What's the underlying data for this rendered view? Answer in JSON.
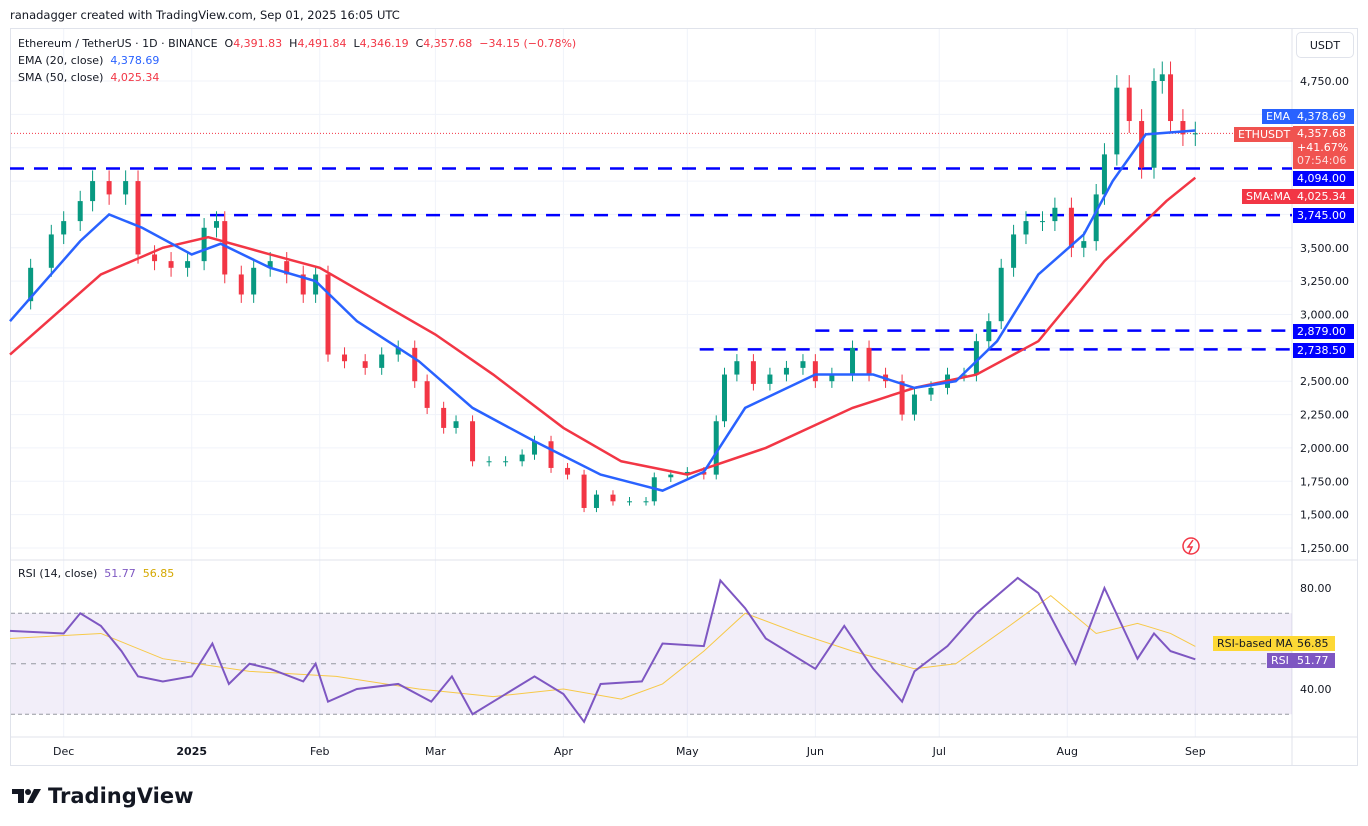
{
  "credit": "ranadagger created with TradingView.com, Sep 01, 2025 16:05 UTC",
  "legend": {
    "symbol": "Ethereum / TetherUS · 1D · BINANCE",
    "open_label": "O",
    "open": "4,391.83",
    "high_label": "H",
    "high": "4,491.84",
    "low_label": "L",
    "low": "4,346.19",
    "close_label": "C",
    "close": "4,357.68",
    "change": "−34.15 (−0.78%)",
    "ema_label": "EMA (20, close)",
    "ema_value": "4,378.69",
    "sma_label": "SMA (50, close)",
    "sma_value": "4,025.34",
    "rsi_label": "RSI (14, close)",
    "rsi_value": "51.77",
    "rsi_ma_value": "56.85"
  },
  "currency": "USDT",
  "tags": {
    "ema": {
      "label": "EMA",
      "value": "4,378.69"
    },
    "price": {
      "label": "ETHUSDT",
      "value": "4,357.68",
      "pct": "+41.67%",
      "countdown": "07:54:06"
    },
    "sma": {
      "label": "SMA:MA",
      "value": "4,025.34"
    },
    "lvl1": "4,094.00",
    "lvl2": "3,745.00",
    "lvl3": "2,879.00",
    "lvl4": "2,738.50",
    "rsi_ma": {
      "label": "RSI-based MA",
      "value": "56.85"
    },
    "rsi": {
      "label": "RSI",
      "value": "51.77"
    }
  },
  "brand": "TradingView",
  "colors": {
    "up": "#089981",
    "down": "#f23645",
    "ema": "#2962ff",
    "sma": "#f23645",
    "level": "#0000ff",
    "rsi": "#7e57c2",
    "rsi_ma": "#f7c948"
  },
  "chart_data": {
    "type": "candlestick",
    "y_ticks": [
      "4,750.00",
      "3,500.00",
      "3,250.00",
      "3,000.00",
      "2,500.00",
      "2,250.00",
      "2,000.00",
      "1,750.00",
      "1,500.00",
      "1,250.00"
    ],
    "x_ticks": [
      [
        "2024-12-01",
        "Dec"
      ],
      [
        "2025-01-01",
        "2025"
      ],
      [
        "2025-02-01",
        "Feb"
      ],
      [
        "2025-03-01",
        "Mar"
      ],
      [
        "2025-04-01",
        "Apr"
      ],
      [
        "2025-05-01",
        "May"
      ],
      [
        "2025-06-01",
        "Jun"
      ],
      [
        "2025-07-01",
        "Jul"
      ],
      [
        "2025-08-01",
        "Aug"
      ],
      [
        "2025-09-01",
        "Sep"
      ]
    ],
    "ylim": [
      1150,
      4950
    ],
    "closes": [
      [
        "2024-11-18",
        3100
      ],
      [
        "2024-11-23",
        3350
      ],
      [
        "2024-11-28",
        3600
      ],
      [
        "2024-12-01",
        3700
      ],
      [
        "2024-12-05",
        3850
      ],
      [
        "2024-12-08",
        4000
      ],
      [
        "2024-12-12",
        3900
      ],
      [
        "2024-12-16",
        4000
      ],
      [
        "2024-12-19",
        3450
      ],
      [
        "2024-12-23",
        3400
      ],
      [
        "2024-12-27",
        3350
      ],
      [
        "2024-12-31",
        3400
      ],
      [
        "2025-01-04",
        3650
      ],
      [
        "2025-01-07",
        3700
      ],
      [
        "2025-01-09",
        3300
      ],
      [
        "2025-01-13",
        3150
      ],
      [
        "2025-01-16",
        3350
      ],
      [
        "2025-01-20",
        3400
      ],
      [
        "2025-01-24",
        3300
      ],
      [
        "2025-01-28",
        3150
      ],
      [
        "2025-01-31",
        3300
      ],
      [
        "2025-02-03",
        2700
      ],
      [
        "2025-02-07",
        2650
      ],
      [
        "2025-02-12",
        2600
      ],
      [
        "2025-02-16",
        2700
      ],
      [
        "2025-02-20",
        2750
      ],
      [
        "2025-02-24",
        2500
      ],
      [
        "2025-02-27",
        2300
      ],
      [
        "2025-03-03",
        2150
      ],
      [
        "2025-03-06",
        2200
      ],
      [
        "2025-03-10",
        1900
      ],
      [
        "2025-03-14",
        1900
      ],
      [
        "2025-03-18",
        1900
      ],
      [
        "2025-03-22",
        1950
      ],
      [
        "2025-03-25",
        2050
      ],
      [
        "2025-03-29",
        1850
      ],
      [
        "2025-04-02",
        1800
      ],
      [
        "2025-04-06",
        1550
      ],
      [
        "2025-04-09",
        1650
      ],
      [
        "2025-04-13",
        1600
      ],
      [
        "2025-04-17",
        1600
      ],
      [
        "2025-04-21",
        1600
      ],
      [
        "2025-04-23",
        1780
      ],
      [
        "2025-04-27",
        1800
      ],
      [
        "2025-05-01",
        1820
      ],
      [
        "2025-05-05",
        1800
      ],
      [
        "2025-05-08",
        2200
      ],
      [
        "2025-05-10",
        2550
      ],
      [
        "2025-05-13",
        2650
      ],
      [
        "2025-05-17",
        2480
      ],
      [
        "2025-05-21",
        2550
      ],
      [
        "2025-05-25",
        2600
      ],
      [
        "2025-05-29",
        2650
      ],
      [
        "2025-06-01",
        2500
      ],
      [
        "2025-06-05",
        2550
      ],
      [
        "2025-06-10",
        2750
      ],
      [
        "2025-06-14",
        2550
      ],
      [
        "2025-06-18",
        2500
      ],
      [
        "2025-06-22",
        2250
      ],
      [
        "2025-06-25",
        2400
      ],
      [
        "2025-06-29",
        2450
      ],
      [
        "2025-07-03",
        2550
      ],
      [
        "2025-07-07",
        2550
      ],
      [
        "2025-07-10",
        2800
      ],
      [
        "2025-07-13",
        2950
      ],
      [
        "2025-07-16",
        3350
      ],
      [
        "2025-07-19",
        3600
      ],
      [
        "2025-07-22",
        3700
      ],
      [
        "2025-07-26",
        3700
      ],
      [
        "2025-07-29",
        3800
      ],
      [
        "2025-08-02",
        3500
      ],
      [
        "2025-08-05",
        3550
      ],
      [
        "2025-08-08",
        3900
      ],
      [
        "2025-08-10",
        4200
      ],
      [
        "2025-08-13",
        4700
      ],
      [
        "2025-08-16",
        4450
      ],
      [
        "2025-08-19",
        4100
      ],
      [
        "2025-08-22",
        4750
      ],
      [
        "2025-08-24",
        4800
      ],
      [
        "2025-08-26",
        4450
      ],
      [
        "2025-08-29",
        4350
      ],
      [
        "2025-09-01",
        4358
      ]
    ],
    "ema20": [
      [
        "2024-11-18",
        2950
      ],
      [
        "2024-12-05",
        3550
      ],
      [
        "2024-12-12",
        3750
      ],
      [
        "2024-12-20",
        3650
      ],
      [
        "2025-01-01",
        3450
      ],
      [
        "2025-01-08",
        3530
      ],
      [
        "2025-01-20",
        3350
      ],
      [
        "2025-01-31",
        3250
      ],
      [
        "2025-02-10",
        2950
      ],
      [
        "2025-02-25",
        2650
      ],
      [
        "2025-03-10",
        2300
      ],
      [
        "2025-03-25",
        2050
      ],
      [
        "2025-04-10",
        1800
      ],
      [
        "2025-04-25",
        1680
      ],
      [
        "2025-05-05",
        1820
      ],
      [
        "2025-05-15",
        2300
      ],
      [
        "2025-06-01",
        2550
      ],
      [
        "2025-06-15",
        2550
      ],
      [
        "2025-06-25",
        2450
      ],
      [
        "2025-07-05",
        2500
      ],
      [
        "2025-07-15",
        2800
      ],
      [
        "2025-07-25",
        3300
      ],
      [
        "2025-08-05",
        3600
      ],
      [
        "2025-08-12",
        4000
      ],
      [
        "2025-08-20",
        4350
      ],
      [
        "2025-09-01",
        4378.69
      ]
    ],
    "sma50": [
      [
        "2024-11-18",
        2700
      ],
      [
        "2024-12-10",
        3300
      ],
      [
        "2024-12-25",
        3500
      ],
      [
        "2025-01-05",
        3580
      ],
      [
        "2025-01-20",
        3450
      ],
      [
        "2025-02-01",
        3350
      ],
      [
        "2025-02-15",
        3100
      ],
      [
        "2025-03-01",
        2850
      ],
      [
        "2025-03-15",
        2550
      ],
      [
        "2025-04-01",
        2150
      ],
      [
        "2025-04-15",
        1900
      ],
      [
        "2025-05-01",
        1800
      ],
      [
        "2025-05-20",
        2000
      ],
      [
        "2025-06-10",
        2300
      ],
      [
        "2025-06-25",
        2450
      ],
      [
        "2025-07-10",
        2550
      ],
      [
        "2025-07-25",
        2800
      ],
      [
        "2025-08-10",
        3400
      ],
      [
        "2025-08-25",
        3850
      ],
      [
        "2025-09-01",
        4025.34
      ]
    ],
    "levels": [
      {
        "value": 4094,
        "from": "2024-11-18"
      },
      {
        "value": 3745,
        "from": "2024-12-19"
      },
      {
        "value": 2879,
        "from": "2025-06-01"
      },
      {
        "value": 2738.5,
        "from": "2025-05-04"
      }
    ],
    "rsi": {
      "y_ticks": [
        "80.00",
        "40.00"
      ],
      "ylim": [
        22,
        92
      ],
      "bands": [
        70,
        50,
        30
      ],
      "rsi": [
        [
          "2024-11-18",
          63
        ],
        [
          "2024-12-01",
          62
        ],
        [
          "2024-12-05",
          70
        ],
        [
          "2024-12-10",
          65
        ],
        [
          "2024-12-15",
          55
        ],
        [
          "2024-12-19",
          45
        ],
        [
          "2024-12-25",
          43
        ],
        [
          "2025-01-01",
          45
        ],
        [
          "2025-01-06",
          58
        ],
        [
          "2025-01-10",
          42
        ],
        [
          "2025-01-15",
          50
        ],
        [
          "2025-01-20",
          48
        ],
        [
          "2025-01-28",
          43
        ],
        [
          "2025-01-31",
          50
        ],
        [
          "2025-02-03",
          35
        ],
        [
          "2025-02-10",
          40
        ],
        [
          "2025-02-20",
          42
        ],
        [
          "2025-02-28",
          35
        ],
        [
          "2025-03-05",
          45
        ],
        [
          "2025-03-10",
          30
        ],
        [
          "2025-03-18",
          38
        ],
        [
          "2025-03-25",
          45
        ],
        [
          "2025-04-01",
          38
        ],
        [
          "2025-04-06",
          27
        ],
        [
          "2025-04-10",
          42
        ],
        [
          "2025-04-20",
          43
        ],
        [
          "2025-04-25",
          58
        ],
        [
          "2025-05-05",
          57
        ],
        [
          "2025-05-09",
          83
        ],
        [
          "2025-05-15",
          72
        ],
        [
          "2025-05-20",
          60
        ],
        [
          "2025-06-01",
          48
        ],
        [
          "2025-06-08",
          65
        ],
        [
          "2025-06-15",
          48
        ],
        [
          "2025-06-22",
          35
        ],
        [
          "2025-06-25",
          47
        ],
        [
          "2025-07-03",
          57
        ],
        [
          "2025-07-10",
          70
        ],
        [
          "2025-07-20",
          84
        ],
        [
          "2025-07-25",
          78
        ],
        [
          "2025-08-03",
          50
        ],
        [
          "2025-08-10",
          80
        ],
        [
          "2025-08-18",
          52
        ],
        [
          "2025-08-22",
          62
        ],
        [
          "2025-08-26",
          55
        ],
        [
          "2025-09-01",
          51.77
        ]
      ],
      "rsi_ma": [
        [
          "2024-11-18",
          60
        ],
        [
          "2024-12-10",
          62
        ],
        [
          "2024-12-25",
          52
        ],
        [
          "2025-01-15",
          47
        ],
        [
          "2025-02-05",
          45
        ],
        [
          "2025-02-25",
          40
        ],
        [
          "2025-03-15",
          37
        ],
        [
          "2025-04-01",
          40
        ],
        [
          "2025-04-15",
          36
        ],
        [
          "2025-04-25",
          42
        ],
        [
          "2025-05-05",
          55
        ],
        [
          "2025-05-15",
          70
        ],
        [
          "2025-05-28",
          62
        ],
        [
          "2025-06-10",
          55
        ],
        [
          "2025-06-25",
          48
        ],
        [
          "2025-07-05",
          50
        ],
        [
          "2025-07-18",
          65
        ],
        [
          "2025-07-28",
          77
        ],
        [
          "2025-08-08",
          62
        ],
        [
          "2025-08-18",
          66
        ],
        [
          "2025-08-26",
          62
        ],
        [
          "2025-09-01",
          56.85
        ]
      ]
    }
  }
}
